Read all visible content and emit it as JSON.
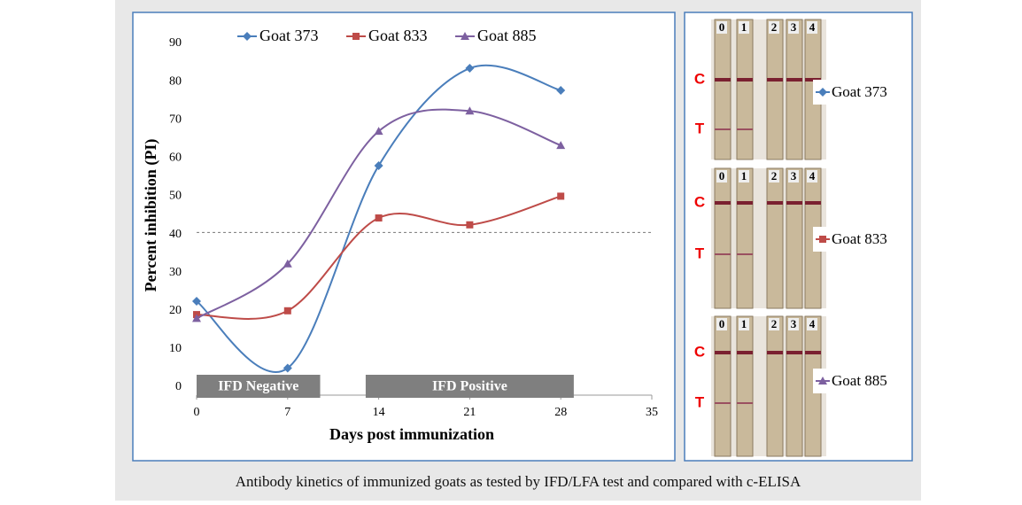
{
  "chart_data": {
    "type": "line",
    "xlabel": "Days post immunization",
    "ylabel": "Percent inhibition (PI)",
    "x": [
      0,
      7,
      14,
      21,
      28
    ],
    "series": [
      {
        "name": "Goat 373",
        "color": "#4a7ebb",
        "marker": "diamond",
        "values": [
          22.5,
          5,
          58,
          83.5,
          77.7
        ]
      },
      {
        "name": "Goat 833",
        "color": "#be4b48",
        "marker": "square",
        "values": [
          19,
          20,
          44.3,
          42.5,
          50
        ]
      },
      {
        "name": "Goat 885",
        "color": "#7d60a0",
        "marker": "triangle",
        "values": [
          18,
          32.3,
          67,
          72.3,
          63.3
        ]
      }
    ],
    "xlim": [
      0,
      35
    ],
    "xticks": [
      0,
      7,
      14,
      21,
      28,
      35
    ],
    "ylim": [
      0,
      90
    ],
    "yticks": [
      0,
      10,
      20,
      30,
      40,
      50,
      60,
      70,
      80,
      90
    ],
    "smooth": true,
    "threshold": 40.5,
    "annotations": [
      {
        "text": "IFD Negative",
        "x": [
          0,
          9.5
        ]
      },
      {
        "text": "IFD Positive",
        "x": [
          13,
          29
        ]
      }
    ]
  },
  "strip_panels": [
    {
      "lanes": [
        "0",
        "1",
        "2",
        "3",
        "4"
      ],
      "control": "C",
      "test": "T"
    },
    {
      "lanes": [
        "0",
        "1",
        "2",
        "3",
        "4"
      ],
      "control": "C",
      "test": "T"
    },
    {
      "lanes": [
        "0",
        "1",
        "2",
        "3",
        "4"
      ],
      "control": "C",
      "test": "T"
    }
  ],
  "caption": "Antibody kinetics of immunized goats as tested by IFD/LFA test and compared with c-ELISA"
}
